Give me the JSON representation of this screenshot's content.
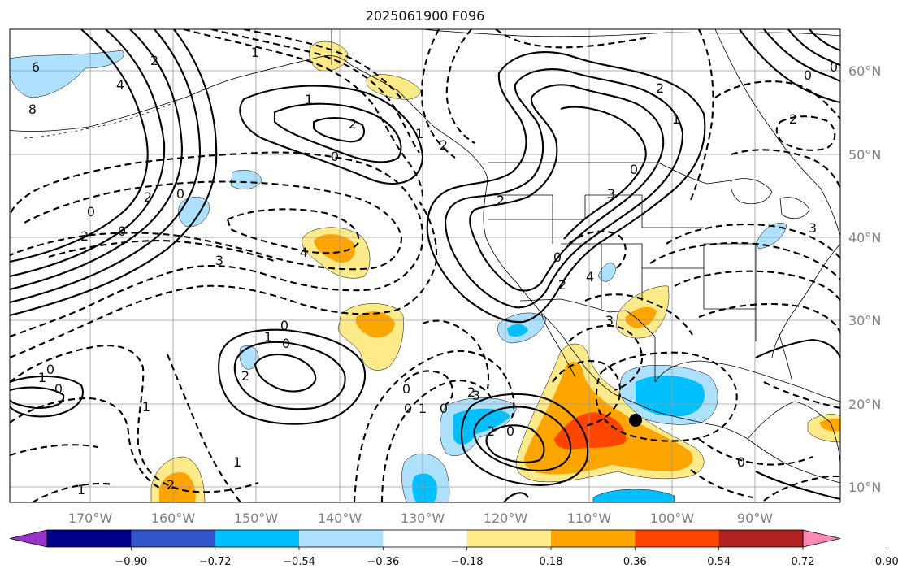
{
  "title": "2025061900 F096",
  "lon_labels": [
    "170°W",
    "160°W",
    "150°W",
    "140°W",
    "130°W",
    "120°W",
    "110°W",
    "100°W",
    "90°W"
  ],
  "lat_labels": [
    "60°N",
    "50°N",
    "40°N",
    "30°N",
    "20°N",
    "10°N"
  ],
  "colorbar": {
    "tick_labels": [
      "−0.90",
      "−0.72",
      "−0.54",
      "−0.36",
      "−0.18",
      "0.18",
      "0.36",
      "0.54",
      "0.72",
      "0.90"
    ],
    "colors": [
      "#9933cc",
      "#00008b",
      "#3355cc",
      "#00bfff",
      "#aee0ff",
      "#ffffff",
      "#ffea8a",
      "#ffa500",
      "#ff4500",
      "#b22222",
      "#ff88b4"
    ]
  },
  "contour_labels": [
    "6",
    "4",
    "8",
    "1",
    "2",
    "0",
    "2",
    "0",
    "2",
    "0",
    "4",
    "3",
    "1",
    "2",
    "0",
    "1",
    "2",
    "2",
    "1",
    "0",
    "2",
    "3",
    "0",
    "4",
    "2",
    "3",
    "2",
    "0",
    "0",
    "3",
    "0",
    "1",
    "0",
    "2",
    "0",
    "1",
    "0",
    "1",
    "1",
    "0",
    "1",
    "0",
    "3",
    "2",
    "0",
    "2",
    "0",
    "2",
    "0",
    "1"
  ],
  "marker": {
    "name": "point marker"
  }
}
